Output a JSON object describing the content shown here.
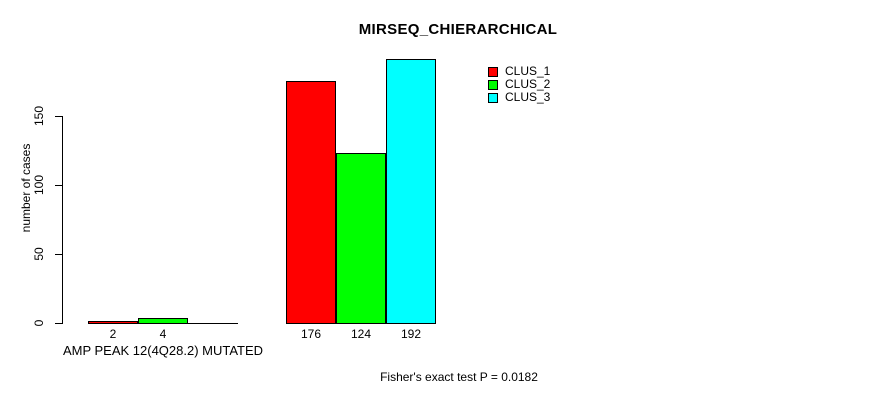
{
  "chart_data": {
    "type": "bar",
    "title": "MIRSEQ_CHIERARCHICAL",
    "ylabel": "number of cases",
    "xlabel": "",
    "ylim": [
      0,
      150
    ],
    "yticks": [
      0,
      50,
      100,
      150
    ],
    "grid": false,
    "legend_position": "top-right",
    "group_labels": [
      "AMP PEAK 12(4Q28.2) MUTATED",
      ""
    ],
    "series": [
      {
        "name": "CLUS_1",
        "color": "#ff0000",
        "values": [
          2,
          176
        ]
      },
      {
        "name": "CLUS_2",
        "color": "#00ff00",
        "values": [
          4,
          124
        ]
      },
      {
        "name": "CLUS_3",
        "color": "#00ffff",
        "values": [
          0,
          192
        ]
      }
    ],
    "bar_value_labels_shown": true,
    "annotation": "Fisher's exact test P = 0.0182",
    "colors": {
      "axis": "#000000",
      "background": "#ffffff"
    }
  }
}
